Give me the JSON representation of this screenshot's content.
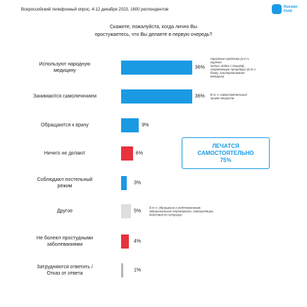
{
  "header": "Всероссийский телефонный опрос, 4-12 декабря 2023, 1600 респондентов",
  "logo": "Russian\nField",
  "chart_data": {
    "type": "bar",
    "orientation": "horizontal",
    "title": "Скажите, пожалуйста, когда лично Вы\nпростужаетесь, что Вы делаете в первую очередь?",
    "categories": [
      "Используют народную\nмедицину",
      "Занимаются самолечением",
      "Обращаются к врачу",
      "Ничего не делают",
      "Соблюдают постельный\nрежим",
      "Другое",
      "Не болеют простудными\nзаболеваниями",
      "Затрудняются ответить /\nОтказ от ответа"
    ],
    "values": [
      36,
      36,
      9,
      6,
      3,
      5,
      4,
      1
    ],
    "value_labels": [
      "36%",
      "36%",
      "9%",
      "6%",
      "3%",
      "5%",
      "4%",
      "1%"
    ],
    "colors": [
      "#1b9ae4",
      "#1b9ae4",
      "#1b9ae4",
      "#e8323c",
      "#1b9ae4",
      "#dedede",
      "#e8323c",
      "#b5b5b5"
    ],
    "notes": [
      "Народные средства (в т.ч. горячее\nпитье, водка с перцем),\nсогревающие процедуры (в т.ч.\nбаня), альтернативная медицина",
      "В т.ч. самостоятельный\nприем лекарств",
      null,
      null,
      null,
      "В т.ч. обращение к родственникам,\nэмоциональные переживания, самоизоляция,\nдействия по ситуации",
      null,
      null
    ],
    "callout": {
      "text": "ЛЕЧАТСЯ\nСАМОСТОЯТЕЛЬНО",
      "value_label": "75%"
    }
  }
}
